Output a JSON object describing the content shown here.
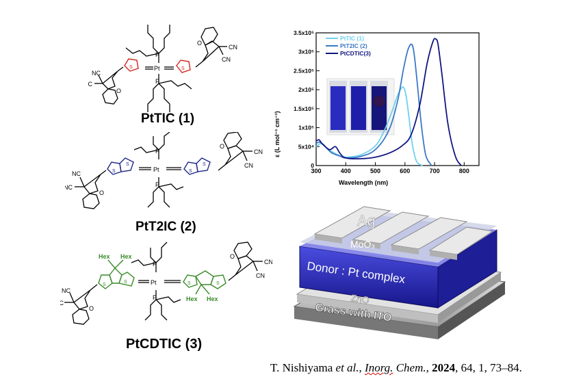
{
  "structures": {
    "s1": {
      "name": "PtTIC (1)",
      "atoms": {
        "pt": "Pt",
        "p": "P",
        "s": "S",
        "o": "O",
        "cn": "CN",
        "nc": "NC"
      }
    },
    "s2": {
      "name": "PtT2IC (2)",
      "atoms": {
        "pt": "Pt",
        "p": "P",
        "s": "S",
        "o": "O",
        "cn": "CN",
        "nc": "NC"
      }
    },
    "s3": {
      "name": "PtCDTIC (3)",
      "atoms": {
        "pt": "Pt",
        "p": "P",
        "s": "S",
        "o": "O",
        "cn": "CN",
        "nc": "NC",
        "hex": "Hex"
      }
    }
  },
  "chart_data": {
    "type": "line",
    "xlabel": "Wavelength (nm)",
    "ylabel": "ε (L mol⁻¹ cm⁻¹)",
    "xlim": [
      300,
      850
    ],
    "ylim": [
      0,
      350000
    ],
    "xticks": [
      "300",
      "400",
      "500",
      "600",
      "700",
      "800"
    ],
    "yticks": [
      "0",
      "5x10⁴",
      "1x10⁵",
      "1.5x10⁵",
      "2x10⁵",
      "2.5x10⁵",
      "3x10⁵",
      "3.5x10⁵"
    ],
    "legend_position": "top-left",
    "series": [
      {
        "name": "PtTIC (1)",
        "color": "#6fd0ee",
        "x": [
          300,
          315,
          330,
          350,
          380,
          400,
          450,
          500,
          530,
          555,
          575,
          590,
          598,
          605,
          615,
          625,
          640,
          660
        ],
        "y": [
          50000,
          58000,
          50000,
          38000,
          26000,
          22000,
          28000,
          52000,
          92000,
          140000,
          185000,
          206000,
          202000,
          178000,
          118000,
          55000,
          10000,
          0
        ]
      },
      {
        "name": "PtT2IC (2)",
        "color": "#3b78c4",
        "x": [
          300,
          310,
          325,
          350,
          380,
          400,
          450,
          500,
          545,
          575,
          595,
          610,
          622,
          630,
          640,
          655,
          670,
          690
        ],
        "y": [
          58000,
          62000,
          55000,
          35000,
          25000,
          20000,
          24000,
          42000,
          92000,
          170000,
          255000,
          305000,
          320000,
          300000,
          230000,
          110000,
          28000,
          0
        ]
      },
      {
        "name": "PtCDTIC(3)",
        "color": "#101580",
        "x": [
          300,
          310,
          320,
          345,
          365,
          380,
          400,
          450,
          500,
          550,
          590,
          620,
          650,
          675,
          695,
          705,
          712,
          725,
          745,
          770,
          790
        ],
        "y": [
          65000,
          68000,
          58000,
          42000,
          50000,
          33000,
          20000,
          18000,
          22000,
          34000,
          52000,
          80000,
          160000,
          270000,
          328000,
          333000,
          318000,
          240000,
          110000,
          25000,
          0
        ]
      }
    ]
  },
  "device": {
    "layers": [
      "Ag",
      "MoO₃",
      "Donor : Pt complex",
      "ZnO",
      "Grass with ITO"
    ]
  },
  "citation": {
    "authors": "T. Nishiyama ",
    "etal": "et al.",
    "sep1": ", ",
    "journal_a": "Inorg.",
    "journal_b": " Chem.",
    "sep2": ", ",
    "year": "2024",
    "rest": ",  64, 1, 73–84."
  }
}
